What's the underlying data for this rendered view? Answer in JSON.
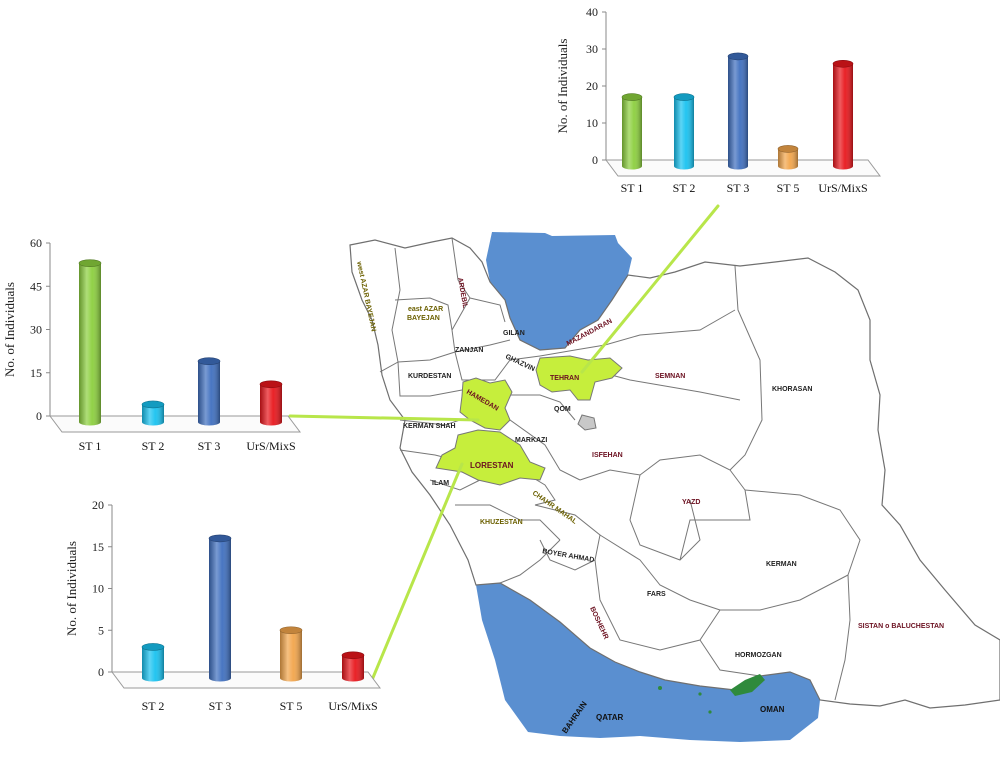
{
  "map": {
    "provinces": {
      "west_azar": "west AZAR BAYEJAN",
      "east_azar_1": "east AZAR",
      "east_azar_2": "BAYEJAN",
      "ardebil": "ARDEBIL",
      "gilan": "GILAN",
      "zanjan": "ZANJAN",
      "ghazvin": "GHAZVIN",
      "mazandaran": "MAZANDARAN",
      "tehran": "TEHRAN",
      "semnan": "SEMNAN",
      "khorasan": "KHORASAN",
      "kurdestan": "KURDESTAN",
      "hamedan": "HAMEDAN",
      "qom": "QOM",
      "kerman_shah": "KERMAN SHAH",
      "markazi": "MARKAZI",
      "isfahan": "ISFEHAN",
      "lorestan": "LORESTAN",
      "ilam": "ILAM",
      "chahar_mahal": "CHAHR MAHAL",
      "khuzestan": "KHUZESTAN",
      "boyer_ahmad": "BOYER AHMAD",
      "yazd": "YAZD",
      "kerman": "KERMAN",
      "fars": "FARS",
      "boushehr": "BOSHEHR",
      "hormozgan": "HORMOZGAN",
      "sistan": "SISTAN o BALUCHESTAN"
    },
    "seas": {
      "bahrain": "BAHRAIN",
      "qatar": "QATAR",
      "oman": "OMAN"
    },
    "colors": {
      "highlight": "#c6ee3c",
      "water": "#5a8fd0",
      "border": "#7c7c7c",
      "connector": "#b8e64a",
      "qom_fill": "#c8c8c8"
    }
  },
  "chart_data": [
    {
      "id": "tehran",
      "type": "bar",
      "ylabel": "No. of Individuals",
      "ylim": [
        0,
        40
      ],
      "ticks": [
        0,
        10,
        20,
        30,
        40
      ],
      "categories": [
        "ST 1",
        "ST 2",
        "ST 3",
        "ST 5",
        "UrS/MixS"
      ],
      "values": [
        17,
        17,
        28,
        3,
        26
      ],
      "colors": [
        "#8ccf3e",
        "#18c2f0",
        "#3f6fbf",
        "#f2a54b",
        "#e8161c"
      ]
    },
    {
      "id": "hamedan",
      "type": "bar",
      "ylabel": "No. of Individuals",
      "ylim": [
        0,
        60
      ],
      "ticks": [
        0,
        15,
        30,
        45,
        60
      ],
      "categories": [
        "ST 1",
        "ST 2",
        "ST 3",
        "UrS/MixS"
      ],
      "values": [
        53,
        4,
        19,
        11
      ],
      "colors": [
        "#8ccf3e",
        "#18c2f0",
        "#3f6fbf",
        "#e8161c"
      ]
    },
    {
      "id": "lorestan",
      "type": "bar",
      "ylabel": "No. of Individuals",
      "ylim": [
        0,
        20
      ],
      "ticks": [
        0,
        5,
        10,
        15,
        20
      ],
      "categories": [
        "ST 2",
        "ST 3",
        "ST 5",
        "UrS/MixS"
      ],
      "values": [
        3,
        16,
        5,
        2
      ],
      "colors": [
        "#18c2f0",
        "#3f6fbf",
        "#f2a54b",
        "#e8161c"
      ]
    }
  ]
}
